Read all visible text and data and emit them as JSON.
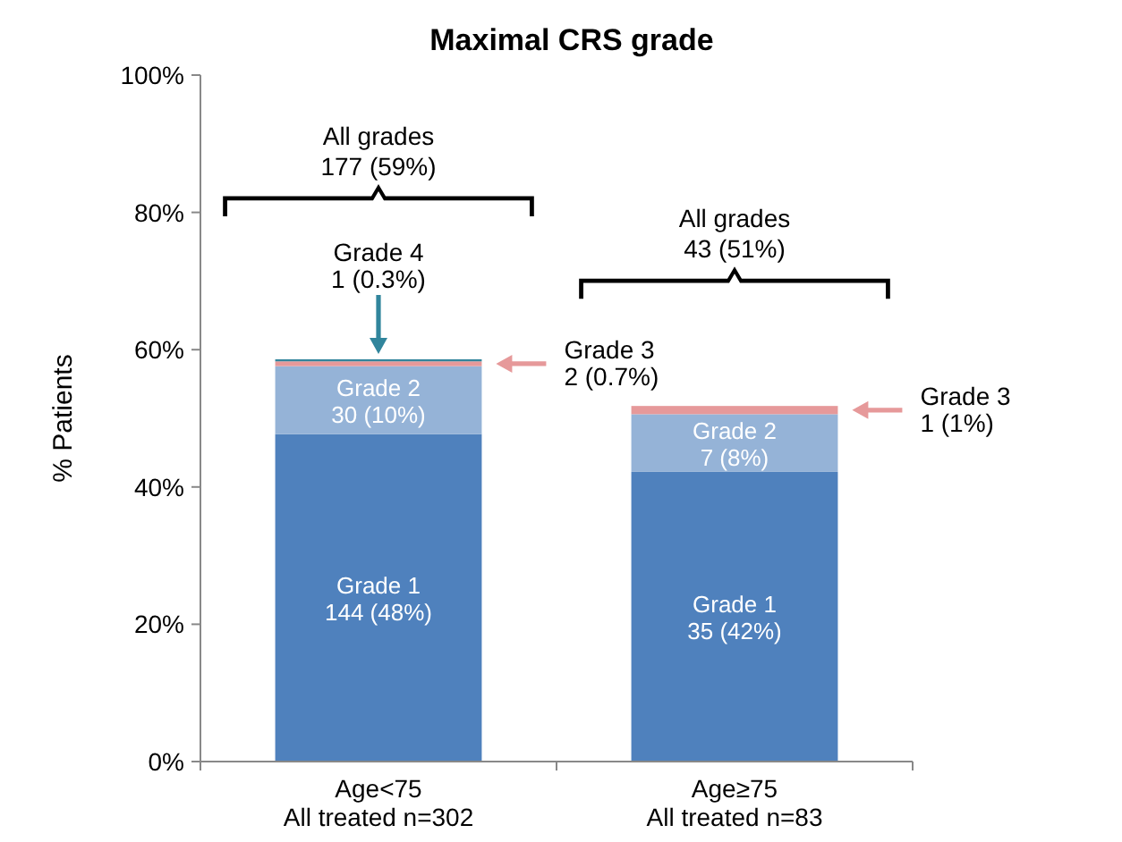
{
  "chart_data": {
    "type": "bar",
    "title": "Maximal CRS grade",
    "ylabel": "% Patients",
    "stacked": true,
    "categories": [
      "Age<75\nAll treated n=302",
      "Age≥75\nAll treated n=83"
    ],
    "series": [
      {
        "name": "Grade 1",
        "color": "#4f81bd",
        "values": [
          47.7,
          42.2
        ],
        "value_labels": [
          "144 (48%)",
          "35 (42%)"
        ]
      },
      {
        "name": "Grade 2",
        "color": "#95b3d7",
        "values": [
          9.9,
          8.4
        ],
        "value_labels": [
          "30 (10%)",
          "7 (8%)"
        ]
      },
      {
        "color": "#e6999a",
        "values": [
          0.7,
          1.2
        ]
      },
      {
        "color": "#31859c",
        "values": [
          0.3,
          null
        ]
      }
    ],
    "ylim": [
      0,
      100
    ],
    "yticks": [
      {
        "value": 0,
        "label": "0%"
      },
      {
        "value": 20,
        "label": "20%"
      },
      {
        "value": 40,
        "label": "40%"
      },
      {
        "value": 60,
        "label": "60%"
      },
      {
        "value": 80,
        "label": "80%"
      },
      {
        "value": 100,
        "label": "100%"
      }
    ],
    "annotations": [
      "All grades\n177 (59%)",
      "All grades\n43 (51%)",
      "Grade 3\n2 (0.7%)",
      "Grade 4\n1 (0.3%)",
      "Grade 3\n1 (1%)"
    ],
    "grid": false
  }
}
